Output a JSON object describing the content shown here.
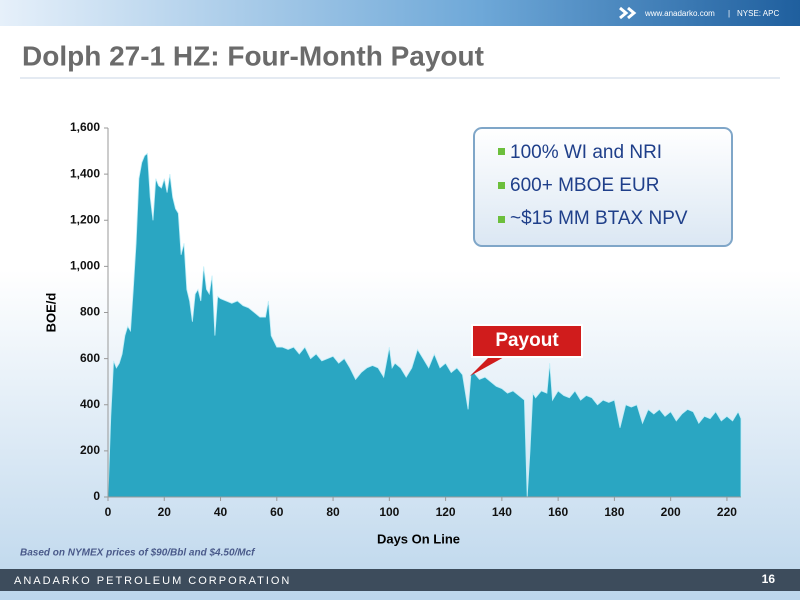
{
  "header": {
    "site": "www.anadarko.com",
    "separator": "|",
    "ticker": "NYSE: APC"
  },
  "title": "Dolph 27-1 HZ: Four-Month Payout",
  "highlights": [
    "100% WI and NRI",
    "600+ MBOE EUR",
    "~$15 MM BTAX NPV"
  ],
  "footnote": "Based on NYMEX prices of $90/Bbl and $4.50/Mcf",
  "footer": {
    "company": "ANADARKO PETROLEUM CORPORATION",
    "page": "16"
  },
  "chart_data": {
    "type": "area",
    "x_label": "Days On Line",
    "y_label": "BOE/d",
    "annotation": "Payout",
    "xlim": [
      0,
      225
    ],
    "ylim": [
      0,
      1600
    ],
    "xticks": [
      0,
      20,
      40,
      60,
      80,
      100,
      120,
      140,
      160,
      180,
      200,
      220
    ],
    "yticks": [
      0,
      200,
      400,
      600,
      800,
      {
        "value": 1000,
        "label": "1,000"
      },
      {
        "value": 1200,
        "label": "1,200"
      },
      {
        "value": 1400,
        "label": "1,400"
      },
      {
        "value": 1600,
        "label": "1,600"
      }
    ],
    "x": [
      0,
      1,
      2,
      3,
      4,
      5,
      6,
      7,
      8,
      9,
      10,
      11,
      12,
      13,
      14,
      15,
      16,
      17,
      18,
      19,
      20,
      21,
      22,
      23,
      24,
      25,
      26,
      27,
      28,
      29,
      30,
      31,
      32,
      33,
      34,
      35,
      36,
      37,
      38,
      39,
      40,
      42,
      44,
      46,
      48,
      50,
      52,
      54,
      56,
      57,
      58,
      60,
      62,
      64,
      66,
      68,
      70,
      72,
      74,
      76,
      78,
      80,
      82,
      84,
      86,
      88,
      90,
      92,
      94,
      96,
      98,
      100,
      101,
      102,
      104,
      106,
      108,
      110,
      112,
      114,
      116,
      118,
      120,
      122,
      124,
      126,
      128,
      129,
      130,
      132,
      134,
      136,
      138,
      140,
      142,
      144,
      146,
      148,
      149,
      150,
      151,
      152,
      154,
      156,
      157,
      158,
      160,
      162,
      164,
      166,
      168,
      170,
      172,
      174,
      176,
      178,
      180,
      182,
      184,
      186,
      188,
      190,
      192,
      194,
      196,
      198,
      200,
      202,
      204,
      206,
      208,
      210,
      212,
      214,
      216,
      218,
      220,
      222,
      224,
      225
    ],
    "series": [
      {
        "name": "BOE/d",
        "color": "#2aa6c2",
        "values": [
          0,
          350,
          590,
          560,
          580,
          620,
          700,
          740,
          720,
          900,
          1100,
          1380,
          1450,
          1480,
          1490,
          1300,
          1200,
          1380,
          1350,
          1340,
          1380,
          1320,
          1400,
          1300,
          1250,
          1230,
          1050,
          1100,
          900,
          850,
          760,
          880,
          900,
          850,
          1000,
          900,
          880,
          960,
          700,
          870,
          860,
          850,
          840,
          850,
          830,
          820,
          800,
          780,
          780,
          850,
          700,
          650,
          650,
          640,
          650,
          620,
          650,
          600,
          620,
          590,
          600,
          610,
          580,
          600,
          560,
          510,
          540,
          560,
          570,
          560,
          520,
          650,
          560,
          580,
          560,
          520,
          560,
          640,
          600,
          560,
          620,
          560,
          580,
          540,
          560,
          530,
          380,
          530,
          540,
          510,
          520,
          500,
          480,
          470,
          450,
          460,
          440,
          420,
          0,
          200,
          450,
          430,
          460,
          450,
          580,
          420,
          460,
          440,
          430,
          460,
          420,
          440,
          430,
          400,
          420,
          410,
          420,
          300,
          400,
          390,
          400,
          320,
          380,
          360,
          380,
          350,
          370,
          330,
          360,
          380,
          370,
          320,
          350,
          340,
          370,
          330,
          350,
          330,
          370,
          340
        ]
      }
    ]
  }
}
